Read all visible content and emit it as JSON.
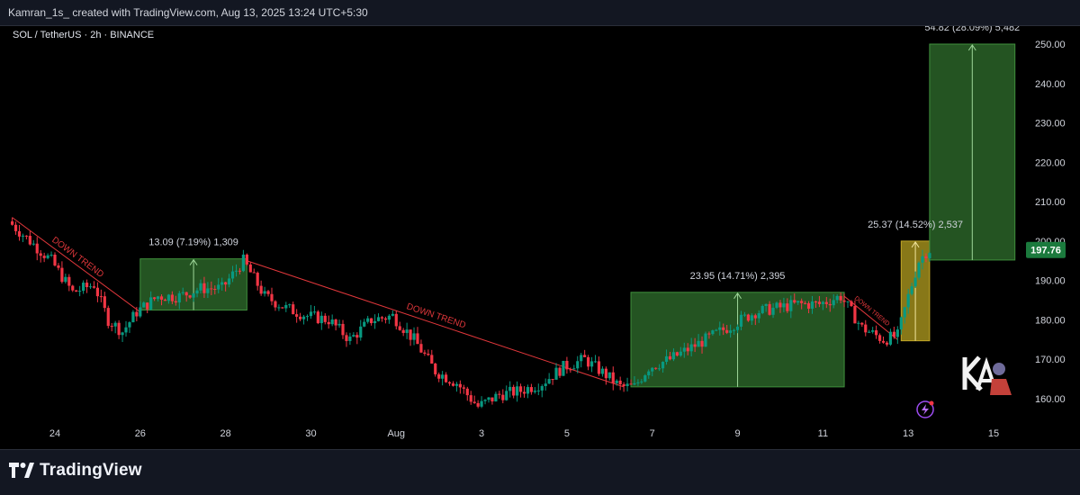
{
  "header": {
    "attribution": "Kamran_1s_ created with TradingView.com, Aug 13, 2025 13:24 UTC+5:30"
  },
  "symbol_line": "SOL / TetherUS · 2h · BINANCE",
  "footer": {
    "brand": "TradingView"
  },
  "colors": {
    "up": "#089981",
    "down": "#f23645",
    "green_box": "#2e6b2c",
    "yellow_box": "#a08d1c",
    "trend_line": "#e0373b",
    "price_badge": "#1b7a3d"
  },
  "chart_data": {
    "type": "candlestick",
    "title": "SOL / TetherUS · 2h · BINANCE",
    "xlabel": "",
    "ylabel": "",
    "ylim": [
      155,
      254
    ],
    "yticks": [
      160,
      170,
      180,
      190,
      200,
      210,
      220,
      230,
      240,
      250
    ],
    "ytick_labels": [
      "160.00",
      "170.00",
      "180.00",
      "190.00",
      "200.00",
      "210.00",
      "220.00",
      "230.00",
      "240.00",
      "250.00"
    ],
    "xticks": [
      {
        "label": "24",
        "date": "Jul 24"
      },
      {
        "label": "26",
        "date": "Jul 26"
      },
      {
        "label": "28",
        "date": "Jul 28"
      },
      {
        "label": "30",
        "date": "Jul 30"
      },
      {
        "label": "Aug",
        "date": "Aug 1"
      },
      {
        "label": "3",
        "date": "Aug 3"
      },
      {
        "label": "5",
        "date": "Aug 5"
      },
      {
        "label": "7",
        "date": "Aug 7"
      },
      {
        "label": "9",
        "date": "Aug 9"
      },
      {
        "label": "11",
        "date": "Aug 11"
      },
      {
        "label": "13",
        "date": "Aug 13"
      },
      {
        "label": "15",
        "date": "Aug 15"
      }
    ],
    "price_path": [
      {
        "date": "Jul 23 00:00",
        "price": 205
      },
      {
        "date": "Jul 23 12:00",
        "price": 200
      },
      {
        "date": "Jul 24 00:00",
        "price": 195
      },
      {
        "date": "Jul 24 12:00",
        "price": 187
      },
      {
        "date": "Jul 25 00:00",
        "price": 189
      },
      {
        "date": "Jul 25 08:00",
        "price": 180
      },
      {
        "date": "Jul 25 16:00",
        "price": 177
      },
      {
        "date": "Jul 26 00:00",
        "price": 182
      },
      {
        "date": "Jul 26 12:00",
        "price": 186
      },
      {
        "date": "Jul 27 00:00",
        "price": 186
      },
      {
        "date": "Jul 27 12:00",
        "price": 188
      },
      {
        "date": "Jul 28 00:00",
        "price": 188
      },
      {
        "date": "Jul 28 12:00",
        "price": 195
      },
      {
        "date": "Jul 29 00:00",
        "price": 186
      },
      {
        "date": "Jul 29 12:00",
        "price": 183
      },
      {
        "date": "Jul 30 00:00",
        "price": 181
      },
      {
        "date": "Jul 30 12:00",
        "price": 180
      },
      {
        "date": "Jul 31 00:00",
        "price": 175
      },
      {
        "date": "Jul 31 12:00",
        "price": 180
      },
      {
        "date": "Aug 1 00:00",
        "price": 181
      },
      {
        "date": "Aug 1 12:00",
        "price": 175
      },
      {
        "date": "Aug 2 00:00",
        "price": 167
      },
      {
        "date": "Aug 2 12:00",
        "price": 164
      },
      {
        "date": "Aug 3 00:00",
        "price": 158
      },
      {
        "date": "Aug 3 12:00",
        "price": 161
      },
      {
        "date": "Aug 4 00:00",
        "price": 162
      },
      {
        "date": "Aug 4 12:00",
        "price": 164
      },
      {
        "date": "Aug 5 00:00",
        "price": 168
      },
      {
        "date": "Aug 5 12:00",
        "price": 170
      },
      {
        "date": "Aug 6 00:00",
        "price": 166
      },
      {
        "date": "Aug 6 08:00",
        "price": 163
      },
      {
        "date": "Aug 6 16:00",
        "price": 163
      },
      {
        "date": "Aug 7 00:00",
        "price": 168
      },
      {
        "date": "Aug 7 12:00",
        "price": 170
      },
      {
        "date": "Aug 8 00:00",
        "price": 173
      },
      {
        "date": "Aug 8 12:00",
        "price": 176
      },
      {
        "date": "Aug 9 00:00",
        "price": 179
      },
      {
        "date": "Aug 9 12:00",
        "price": 182
      },
      {
        "date": "Aug 10 00:00",
        "price": 183
      },
      {
        "date": "Aug 10 12:00",
        "price": 184
      },
      {
        "date": "Aug 11 00:00",
        "price": 184
      },
      {
        "date": "Aug 11 12:00",
        "price": 186
      },
      {
        "date": "Aug 12 00:00",
        "price": 178
      },
      {
        "date": "Aug 12 12:00",
        "price": 175
      },
      {
        "date": "Aug 12 20:00",
        "price": 176
      },
      {
        "date": "Aug 13 02:00",
        "price": 186
      },
      {
        "date": "Aug 13 08:00",
        "price": 195
      },
      {
        "date": "Aug 13 13:00",
        "price": 197.76
      }
    ],
    "last_price": "197.76",
    "trend_lines": [
      {
        "label": "DOWN TREND",
        "from": {
          "date": "Jul 23 00:00",
          "price": 206
        },
        "to": {
          "date": "Jul 26 00:00",
          "price": 182
        }
      },
      {
        "label": "DOWN TREND",
        "from": {
          "date": "Jul 28 12:00",
          "price": 195
        },
        "to": {
          "date": "Aug 6 08:00",
          "price": 163
        }
      },
      {
        "label": "DOWN TREND",
        "from": {
          "date": "Aug 11 12:00",
          "price": 186
        },
        "to": {
          "date": "Aug 12 18:00",
          "price": 175
        }
      }
    ],
    "annotations": [
      {
        "label": "13.09 (7.19%) 1,309",
        "box": "green",
        "from_date": "Jul 26 00:00",
        "to_date": "Jul 28 12:00",
        "price_low": 182.5,
        "price_high": 195.5
      },
      {
        "label": "23.95 (14.71%) 2,395",
        "box": "green",
        "from_date": "Aug 6 12:00",
        "to_date": "Aug 11 12:00",
        "price_low": 163,
        "price_high": 187
      },
      {
        "label": "25.37 (14.52%) 2,537",
        "box": "yellow",
        "from_date": "Aug 12 20:00",
        "to_date": "Aug 13 12:00",
        "price_low": 174.7,
        "price_high": 200
      },
      {
        "label": "54.82 (28.09%) 5,482",
        "box": "green",
        "from_date": "Aug 13 12:00",
        "to_date": "Aug 15 12:00",
        "price_low": 195.2,
        "price_high": 250
      }
    ]
  }
}
